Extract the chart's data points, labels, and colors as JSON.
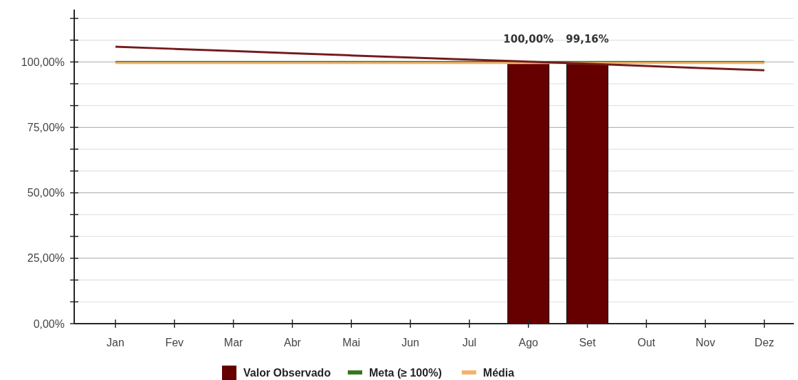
{
  "chart_data": {
    "type": "bar",
    "categories": [
      "Jan",
      "Fev",
      "Mar",
      "Abr",
      "Mai",
      "Jun",
      "Jul",
      "Ago",
      "Set",
      "Out",
      "Nov",
      "Dez"
    ],
    "series": [
      {
        "name": "Valor Observado",
        "color": "#660000",
        "values": [
          null,
          null,
          null,
          null,
          null,
          null,
          null,
          100,
          99.16,
          null,
          null,
          null
        ],
        "value_labels": [
          null,
          null,
          null,
          null,
          null,
          null,
          null,
          "100,00%",
          "99,16%",
          null,
          null,
          null
        ]
      },
      {
        "name": "Meta (≥ 100%)",
        "type": "line",
        "color": "#38761d",
        "values": [
          100,
          100,
          100,
          100,
          100,
          100,
          100,
          100,
          100,
          100,
          100,
          100
        ]
      },
      {
        "name": "Média",
        "type": "line",
        "color": "#f6b26b",
        "values": [
          99.6,
          99.6,
          99.6,
          99.6,
          99.6,
          99.6,
          99.6,
          99.6,
          99.6,
          99.6,
          99.6,
          99.6
        ]
      },
      {
        "type": "line",
        "color": "#741b1b",
        "values": [
          105.8,
          105.0,
          104.2,
          103.3,
          102.5,
          101.7,
          100.9,
          100.1,
          99.3,
          98.5,
          97.6,
          96.8
        ]
      }
    ],
    "ylim": [
      0,
      120
    ],
    "yticks": [
      {
        "value": 0,
        "label": "0,00%"
      },
      {
        "value": 8.33,
        "label": null
      },
      {
        "value": 16.67,
        "label": null
      },
      {
        "value": 25,
        "label": "25,00%"
      },
      {
        "value": 33.33,
        "label": null
      },
      {
        "value": 41.67,
        "label": null
      },
      {
        "value": 50,
        "label": "50,00%"
      },
      {
        "value": 58.33,
        "label": null
      },
      {
        "value": 66.67,
        "label": null
      },
      {
        "value": 75,
        "label": "75,00%"
      },
      {
        "value": 83.33,
        "label": null
      },
      {
        "value": 91.67,
        "label": null
      },
      {
        "value": 100,
        "label": "100,00%"
      },
      {
        "value": 108.33,
        "label": null
      },
      {
        "value": 116.67,
        "label": null
      }
    ],
    "grid": "y",
    "legend": "bottom",
    "marker": "none"
  }
}
